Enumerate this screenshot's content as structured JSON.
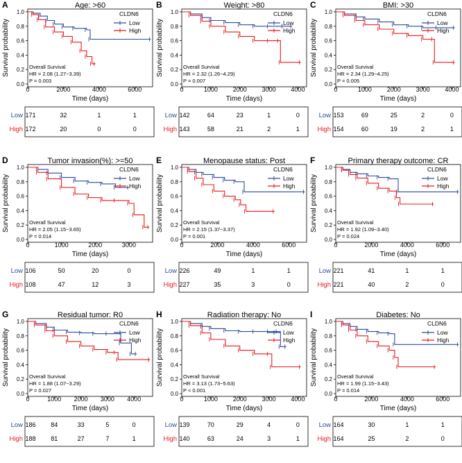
{
  "colors": {
    "low": "#2b4a9b",
    "high": "#e8191c",
    "axis": "#000000",
    "risk_low": "#2b4a9b",
    "risk_high": "#e8191c"
  },
  "common": {
    "ylabel": "Survival probability",
    "xlabel": "Time (days)",
    "legend_title": "CLDN6",
    "legend_low": "Low",
    "legend_high": "High",
    "os_label": "Overall Survival",
    "risk_labels": [
      "Low",
      "High"
    ],
    "yticks": [
      "0.0",
      "0.2",
      "0.4",
      "0.6",
      "0.8",
      "1.0"
    ]
  },
  "chart_data": [
    {
      "type": "line",
      "letter": "A",
      "title": "Age: >60",
      "xmax": 7000,
      "xticks": [
        0,
        2000,
        4000,
        6000
      ],
      "hr": "HR = 2.08 (1.27−3.39)",
      "p": "P = 0.003",
      "risk_low": [
        "171",
        "32",
        "1",
        "1"
      ],
      "risk_high": [
        "172",
        "20",
        "0",
        "0"
      ],
      "series": [
        {
          "name": "Low",
          "points": [
            [
              0,
              1
            ],
            [
              300,
              0.98
            ],
            [
              700,
              0.94
            ],
            [
              1100,
              0.88
            ],
            [
              1500,
              0.83
            ],
            [
              2000,
              0.79
            ],
            [
              2600,
              0.77
            ],
            [
              3300,
              0.75
            ],
            [
              3500,
              0.62
            ],
            [
              6900,
              0.62
            ]
          ]
        },
        {
          "name": "High",
          "points": [
            [
              0,
              1
            ],
            [
              300,
              0.96
            ],
            [
              600,
              0.89
            ],
            [
              1000,
              0.79
            ],
            [
              1500,
              0.72
            ],
            [
              2000,
              0.66
            ],
            [
              2500,
              0.58
            ],
            [
              3000,
              0.46
            ],
            [
              3300,
              0.38
            ],
            [
              3600,
              0.28
            ],
            [
              3800,
              0.28
            ]
          ]
        }
      ]
    },
    {
      "type": "line",
      "letter": "B",
      "title": "Weight: >80",
      "xmax": 4300,
      "xticks": [
        0,
        1000,
        2000,
        3000,
        4000
      ],
      "hr": "HR = 2.32 (1.26−4.29)",
      "p": "P = 0.007",
      "risk_low": [
        "142",
        "64",
        "23",
        "1",
        "0"
      ],
      "risk_high": [
        "143",
        "58",
        "21",
        "2",
        "1"
      ],
      "series": [
        {
          "name": "Low",
          "points": [
            [
              0,
              1
            ],
            [
              300,
              0.97
            ],
            [
              700,
              0.92
            ],
            [
              1000,
              0.88
            ],
            [
              1500,
              0.85
            ],
            [
              2000,
              0.82
            ],
            [
              2500,
              0.8
            ],
            [
              3000,
              0.8
            ],
            [
              3500,
              0.8
            ],
            [
              3800,
              0.8
            ]
          ]
        },
        {
          "name": "High",
          "points": [
            [
              0,
              1
            ],
            [
              300,
              0.95
            ],
            [
              700,
              0.87
            ],
            [
              1000,
              0.8
            ],
            [
              1500,
              0.72
            ],
            [
              2000,
              0.66
            ],
            [
              2500,
              0.6
            ],
            [
              3000,
              0.6
            ],
            [
              3350,
              0.6
            ],
            [
              3400,
              0.3
            ],
            [
              4100,
              0.3
            ]
          ]
        }
      ]
    },
    {
      "type": "line",
      "letter": "C",
      "title": "BMI: >30",
      "xmax": 4300,
      "xticks": [
        0,
        1000,
        2000,
        3000,
        4000
      ],
      "hr": "HR = 2.34 (1.29−4.25)",
      "p": "P = 0.005",
      "risk_low": [
        "153",
        "69",
        "25",
        "2",
        "0"
      ],
      "risk_high": [
        "154",
        "60",
        "19",
        "2",
        "1"
      ],
      "series": [
        {
          "name": "Low",
          "points": [
            [
              0,
              1
            ],
            [
              300,
              0.97
            ],
            [
              700,
              0.93
            ],
            [
              1000,
              0.9
            ],
            [
              1500,
              0.86
            ],
            [
              2000,
              0.82
            ],
            [
              2500,
              0.8
            ],
            [
              3000,
              0.78
            ],
            [
              3500,
              0.78
            ],
            [
              4100,
              0.78
            ]
          ]
        },
        {
          "name": "High",
          "points": [
            [
              0,
              1
            ],
            [
              300,
              0.95
            ],
            [
              700,
              0.88
            ],
            [
              1000,
              0.82
            ],
            [
              1500,
              0.76
            ],
            [
              2000,
              0.7
            ],
            [
              2500,
              0.67
            ],
            [
              3000,
              0.62
            ],
            [
              3350,
              0.62
            ],
            [
              3400,
              0.3
            ],
            [
              4100,
              0.3
            ]
          ]
        }
      ]
    },
    {
      "type": "line",
      "letter": "D",
      "title": "Tumor invasion(%): >=50",
      "xmax": 3700,
      "xticks": [
        0,
        1000,
        2000,
        3000
      ],
      "hr": "HR = 2.05 (1.15−3.65)",
      "p": "P = 0.014",
      "risk_low": [
        "106",
        "50",
        "20",
        "0",
        "0"
      ],
      "risk_high": [
        "108",
        "47",
        "12",
        "3",
        "0"
      ],
      "series": [
        {
          "name": "Low",
          "points": [
            [
              0,
              1
            ],
            [
              300,
              0.97
            ],
            [
              600,
              0.92
            ],
            [
              1000,
              0.86
            ],
            [
              1400,
              0.81
            ],
            [
              1800,
              0.79
            ],
            [
              2200,
              0.77
            ],
            [
              2600,
              0.72
            ],
            [
              3000,
              0.72
            ]
          ]
        },
        {
          "name": "High",
          "points": [
            [
              0,
              1
            ],
            [
              300,
              0.93
            ],
            [
              600,
              0.84
            ],
            [
              1000,
              0.72
            ],
            [
              1400,
              0.63
            ],
            [
              1800,
              0.58
            ],
            [
              2200,
              0.54
            ],
            [
              2600,
              0.54
            ],
            [
              3000,
              0.5
            ],
            [
              3150,
              0.34
            ],
            [
              3450,
              0.17
            ],
            [
              3600,
              0.17
            ]
          ]
        }
      ]
    },
    {
      "type": "line",
      "letter": "E",
      "title": "Menopause status: Post",
      "xmax": 7000,
      "xticks": [
        0,
        2000,
        4000,
        6000
      ],
      "hr": "HR = 2.15 (1.37−3.37)",
      "p": "P = 0.001",
      "risk_low": [
        "226",
        "49",
        "1",
        "1"
      ],
      "risk_high": [
        "227",
        "35",
        "3",
        "0"
      ],
      "series": [
        {
          "name": "Low",
          "points": [
            [
              0,
              1
            ],
            [
              400,
              0.97
            ],
            [
              800,
              0.93
            ],
            [
              1200,
              0.9
            ],
            [
              1800,
              0.86
            ],
            [
              2400,
              0.82
            ],
            [
              3000,
              0.8
            ],
            [
              3500,
              0.66
            ],
            [
              6900,
              0.66
            ]
          ]
        },
        {
          "name": "High",
          "points": [
            [
              0,
              1
            ],
            [
              400,
              0.94
            ],
            [
              800,
              0.85
            ],
            [
              1200,
              0.76
            ],
            [
              1800,
              0.67
            ],
            [
              2400,
              0.6
            ],
            [
              3000,
              0.55
            ],
            [
              3300,
              0.48
            ],
            [
              3600,
              0.39
            ],
            [
              5200,
              0.39
            ]
          ]
        }
      ]
    },
    {
      "type": "line",
      "letter": "F",
      "title": "Primary therapy outcome: CR",
      "xmax": 7000,
      "xticks": [
        0,
        2000,
        4000,
        6000
      ],
      "hr": "HR = 1.92 (1.09−3.40)",
      "p": "P = 0.024",
      "risk_low": [
        "221",
        "41",
        "1",
        "1"
      ],
      "risk_high": [
        "221",
        "40",
        "2",
        "0"
      ],
      "series": [
        {
          "name": "Low",
          "points": [
            [
              0,
              1
            ],
            [
              400,
              0.97
            ],
            [
              800,
              0.93
            ],
            [
              1200,
              0.91
            ],
            [
              1800,
              0.88
            ],
            [
              2400,
              0.86
            ],
            [
              3000,
              0.84
            ],
            [
              3500,
              0.66
            ],
            [
              6900,
              0.66
            ]
          ]
        },
        {
          "name": "High",
          "points": [
            [
              0,
              1
            ],
            [
              400,
              0.96
            ],
            [
              800,
              0.9
            ],
            [
              1200,
              0.85
            ],
            [
              1800,
              0.78
            ],
            [
              2400,
              0.71
            ],
            [
              3000,
              0.67
            ],
            [
              3400,
              0.58
            ],
            [
              3600,
              0.49
            ],
            [
              5500,
              0.49
            ]
          ]
        }
      ]
    },
    {
      "type": "line",
      "letter": "G",
      "title": "Residual tumor: R0",
      "xmax": 4700,
      "xticks": [
        0,
        1000,
        2000,
        3000,
        4000
      ],
      "hr": "HR = 1.88 (1.07−3.29)",
      "p": "P = 0.027",
      "risk_low": [
        "186",
        "84",
        "33",
        "5",
        "0"
      ],
      "risk_high": [
        "188",
        "81",
        "27",
        "7",
        "1"
      ],
      "series": [
        {
          "name": "Low",
          "points": [
            [
              0,
              1
            ],
            [
              300,
              0.97
            ],
            [
              700,
              0.92
            ],
            [
              1000,
              0.88
            ],
            [
              1500,
              0.85
            ],
            [
              2000,
              0.84
            ],
            [
              2500,
              0.83
            ],
            [
              3000,
              0.83
            ],
            [
              3500,
              0.7
            ],
            [
              3900,
              0.55
            ],
            [
              4100,
              0.55
            ]
          ]
        },
        {
          "name": "High",
          "points": [
            [
              0,
              1
            ],
            [
              300,
              0.95
            ],
            [
              700,
              0.87
            ],
            [
              1000,
              0.8
            ],
            [
              1500,
              0.72
            ],
            [
              2000,
              0.66
            ],
            [
              2500,
              0.61
            ],
            [
              3000,
              0.57
            ],
            [
              3300,
              0.57
            ],
            [
              3400,
              0.47
            ],
            [
              4600,
              0.47
            ]
          ]
        }
      ]
    },
    {
      "type": "line",
      "letter": "H",
      "title": "Radiation therapy: No",
      "xmax": 4300,
      "xticks": [
        0,
        1000,
        2000,
        3000,
        4000
      ],
      "hr": "HR = 3.13 (1.73−5.63)",
      "p": "P < 0.001",
      "risk_low": [
        "139",
        "70",
        "29",
        "4",
        "0"
      ],
      "risk_high": [
        "140",
        "63",
        "24",
        "3",
        "1"
      ],
      "series": [
        {
          "name": "Low",
          "points": [
            [
              0,
              1
            ],
            [
              300,
              0.97
            ],
            [
              700,
              0.93
            ],
            [
              1000,
              0.9
            ],
            [
              1500,
              0.87
            ],
            [
              2000,
              0.86
            ],
            [
              2500,
              0.86
            ],
            [
              3000,
              0.86
            ],
            [
              3300,
              0.86
            ],
            [
              3400,
              0.65
            ],
            [
              3600,
              0.65
            ]
          ]
        },
        {
          "name": "High",
          "points": [
            [
              0,
              1
            ],
            [
              300,
              0.94
            ],
            [
              700,
              0.84
            ],
            [
              1000,
              0.75
            ],
            [
              1500,
              0.66
            ],
            [
              2000,
              0.6
            ],
            [
              2500,
              0.55
            ],
            [
              3000,
              0.55
            ],
            [
              3100,
              0.37
            ],
            [
              4100,
              0.37
            ]
          ]
        }
      ]
    },
    {
      "type": "line",
      "letter": "I",
      "title": "Diabetes: No",
      "xmax": 7000,
      "xticks": [
        0,
        2000,
        4000,
        6000
      ],
      "hr": "HR = 1.99 (1.15−3.43)",
      "p": "P = 0.014",
      "risk_low": [
        "164",
        "30",
        "1",
        "1"
      ],
      "risk_high": [
        "164",
        "25",
        "2",
        "0"
      ],
      "series": [
        {
          "name": "Low",
          "points": [
            [
              0,
              1
            ],
            [
              400,
              0.97
            ],
            [
              800,
              0.93
            ],
            [
              1200,
              0.89
            ],
            [
              1800,
              0.86
            ],
            [
              2400,
              0.84
            ],
            [
              3000,
              0.83
            ],
            [
              3300,
              0.68
            ],
            [
              6900,
              0.68
            ]
          ]
        },
        {
          "name": "High",
          "points": [
            [
              0,
              1
            ],
            [
              400,
              0.95
            ],
            [
              800,
              0.88
            ],
            [
              1200,
              0.8
            ],
            [
              1800,
              0.72
            ],
            [
              2400,
              0.66
            ],
            [
              3000,
              0.6
            ],
            [
              3300,
              0.5
            ],
            [
              3500,
              0.37
            ],
            [
              5600,
              0.37
            ]
          ]
        }
      ]
    }
  ]
}
